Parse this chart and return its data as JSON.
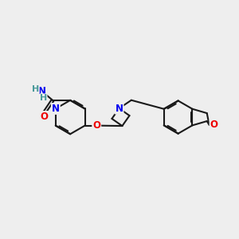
{
  "bg_color": "#eeeeee",
  "bond_color": "#1a1a1a",
  "bond_width": 1.5,
  "atom_colors": {
    "N": "#0000ee",
    "O": "#ee0000",
    "C": "#1a1a1a",
    "H": "#4a9a9a"
  },
  "font_size": 8.5,
  "figsize": [
    3.0,
    3.0
  ],
  "dpi": 100
}
